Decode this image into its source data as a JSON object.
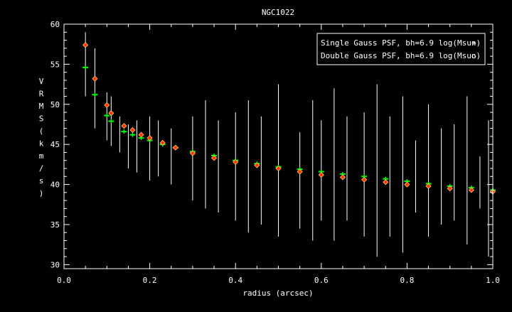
{
  "chart_data": {
    "type": "scatter",
    "title": "NGC1022",
    "xlabel": "radius (arcsec)",
    "ylabel": "VRMS (km/s)",
    "xlim": [
      0.0,
      1.0
    ],
    "ylim": [
      29.5,
      60.0
    ],
    "x_ticks": [
      "0.0",
      "0.2",
      "0.4",
      "0.6",
      "0.8",
      "1.0"
    ],
    "y_ticks": [
      "30",
      "35",
      "40",
      "45",
      "50",
      "55",
      "60"
    ],
    "legend_position": "top-right",
    "colors": {
      "background": "#000000",
      "axes": "#ffffff",
      "errorbars": "#ffffff",
      "single": "#00ff00",
      "double": "#ff3300"
    },
    "series": [
      {
        "name": "Single Gauss PSF, bh=6.9 log(Msun)",
        "marker": "+",
        "points": [
          [
            0.05,
            54.6
          ],
          [
            0.072,
            51.2
          ],
          [
            0.1,
            48.6
          ],
          [
            0.11,
            47.9
          ],
          [
            0.14,
            46.6
          ],
          [
            0.16,
            46.2
          ],
          [
            0.18,
            45.8
          ],
          [
            0.2,
            45.5
          ],
          [
            0.23,
            45.0
          ],
          [
            0.26,
            44.6
          ],
          [
            0.3,
            44.1
          ],
          [
            0.35,
            43.6
          ],
          [
            0.4,
            43.0
          ],
          [
            0.45,
            42.6
          ],
          [
            0.5,
            42.2
          ],
          [
            0.55,
            41.9
          ],
          [
            0.6,
            41.6
          ],
          [
            0.65,
            41.3
          ],
          [
            0.7,
            41.0
          ],
          [
            0.75,
            40.7
          ],
          [
            0.8,
            40.4
          ],
          [
            0.85,
            40.1
          ],
          [
            0.9,
            39.8
          ],
          [
            0.95,
            39.6
          ],
          [
            1.0,
            39.3
          ]
        ]
      },
      {
        "name": "Double Gauss PSF, bh=6.9 log(Msun)",
        "marker": "◇",
        "points": [
          [
            0.05,
            57.4
          ],
          [
            0.072,
            53.2
          ],
          [
            0.1,
            49.9
          ],
          [
            0.11,
            48.9
          ],
          [
            0.14,
            47.3
          ],
          [
            0.16,
            46.8
          ],
          [
            0.18,
            46.2
          ],
          [
            0.2,
            45.8
          ],
          [
            0.23,
            45.2
          ],
          [
            0.26,
            44.6
          ],
          [
            0.3,
            43.9
          ],
          [
            0.35,
            43.3
          ],
          [
            0.4,
            42.8
          ],
          [
            0.45,
            42.4
          ],
          [
            0.5,
            42.0
          ],
          [
            0.55,
            41.6
          ],
          [
            0.6,
            41.2
          ],
          [
            0.65,
            40.9
          ],
          [
            0.7,
            40.6
          ],
          [
            0.75,
            40.3
          ],
          [
            0.8,
            40.0
          ],
          [
            0.85,
            39.8
          ],
          [
            0.9,
            39.5
          ],
          [
            0.95,
            39.3
          ],
          [
            1.0,
            39.1
          ]
        ]
      }
    ],
    "errorbars": [
      [
        0.05,
        51.0,
        59.0
      ],
      [
        0.072,
        47.0,
        57.0
      ],
      [
        0.1,
        45.5,
        51.5
      ],
      [
        0.11,
        44.8,
        51.0
      ],
      [
        0.13,
        44.0,
        48.5
      ],
      [
        0.15,
        42.0,
        47.5
      ],
      [
        0.17,
        41.5,
        48.0
      ],
      [
        0.2,
        40.5,
        48.5
      ],
      [
        0.22,
        41.0,
        48.0
      ],
      [
        0.25,
        40.0,
        47.0
      ],
      [
        0.3,
        38.0,
        48.5
      ],
      [
        0.33,
        37.0,
        50.5
      ],
      [
        0.36,
        36.5,
        48.0
      ],
      [
        0.4,
        35.5,
        49.0
      ],
      [
        0.43,
        34.0,
        50.5
      ],
      [
        0.46,
        35.0,
        48.5
      ],
      [
        0.5,
        33.5,
        52.5
      ],
      [
        0.55,
        34.5,
        46.5
      ],
      [
        0.58,
        33.0,
        50.5
      ],
      [
        0.6,
        35.5,
        48.0
      ],
      [
        0.63,
        33.0,
        52.0
      ],
      [
        0.66,
        35.5,
        48.5
      ],
      [
        0.7,
        33.5,
        49.0
      ],
      [
        0.73,
        31.0,
        52.5
      ],
      [
        0.76,
        33.5,
        48.5
      ],
      [
        0.79,
        31.5,
        51.0
      ],
      [
        0.82,
        36.5,
        45.5
      ],
      [
        0.85,
        33.5,
        50.0
      ],
      [
        0.88,
        35.0,
        47.0
      ],
      [
        0.91,
        35.5,
        47.5
      ],
      [
        0.94,
        32.5,
        51.0
      ],
      [
        0.97,
        37.0,
        43.5
      ],
      [
        0.99,
        31.0,
        48.0
      ]
    ]
  }
}
